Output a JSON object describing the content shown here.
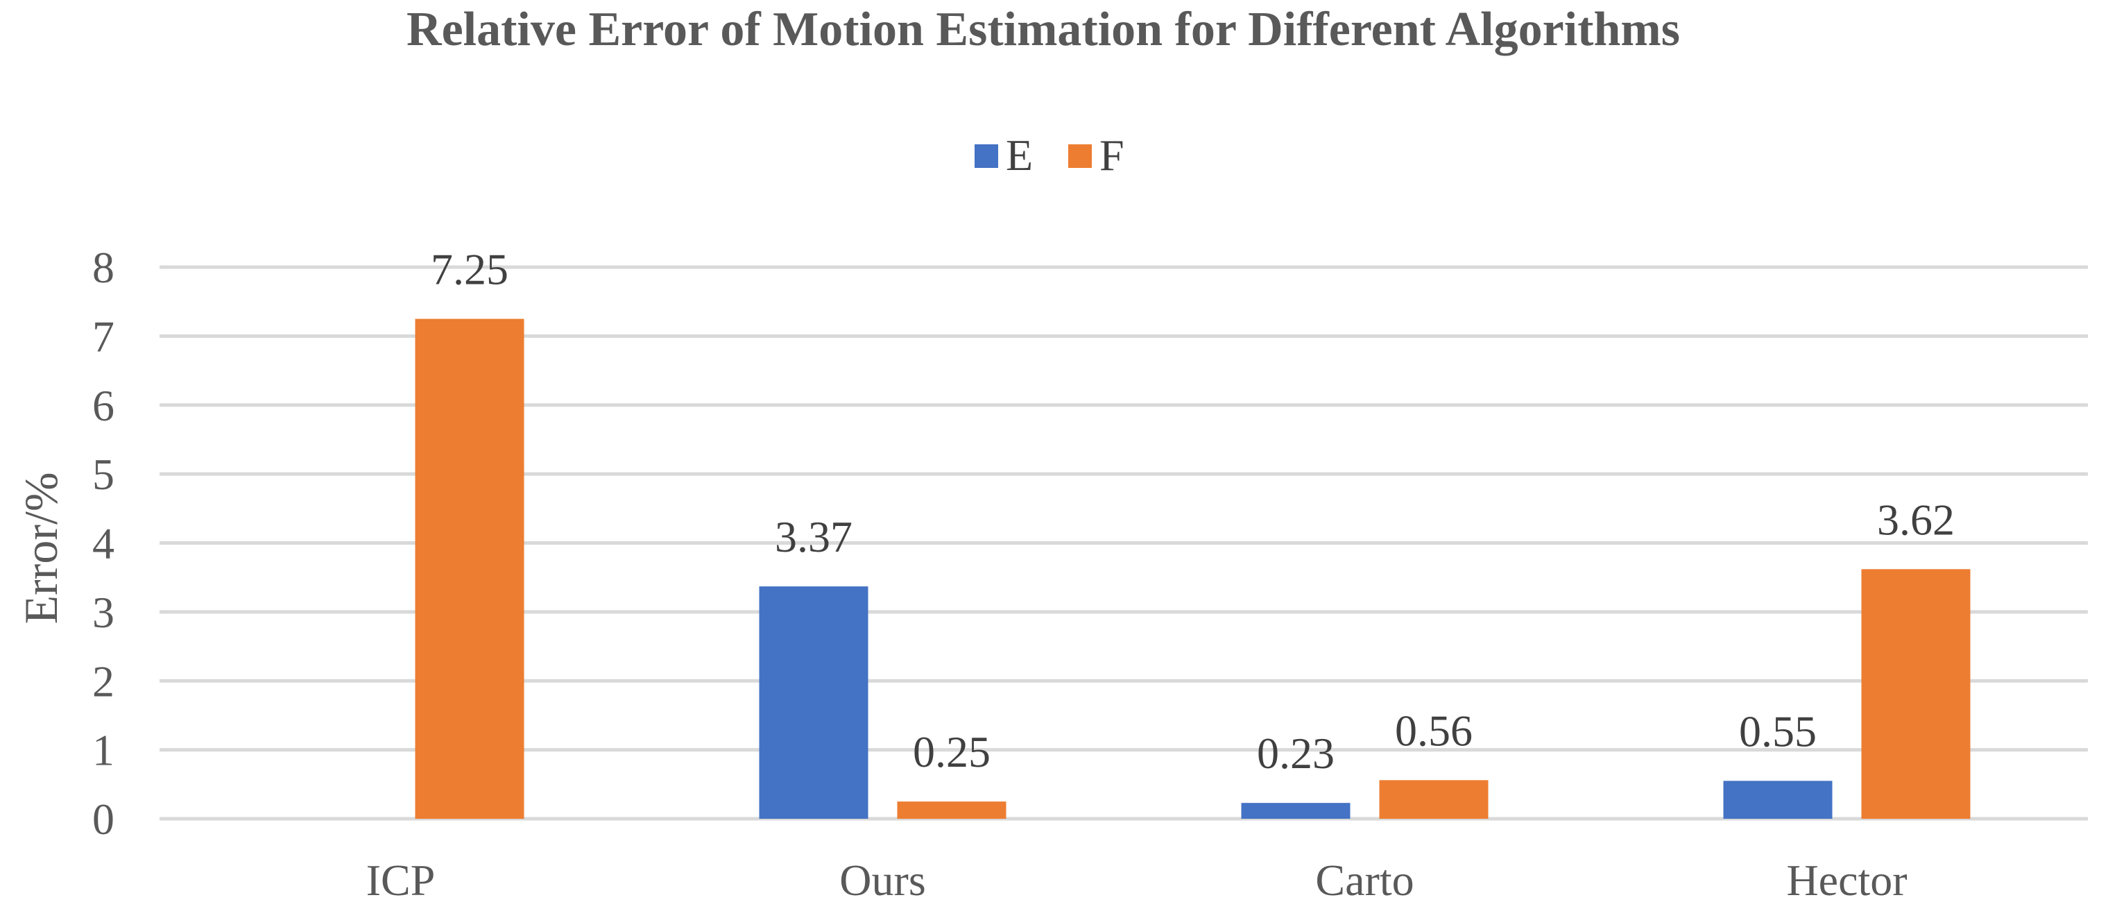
{
  "chart_data": {
    "type": "bar",
    "title": "Relative Error of Motion Estimation for Different Algorithms",
    "xlabel": "",
    "ylabel": "Error/%",
    "categories": [
      "ICP",
      "Ours",
      "Carto",
      "Hector"
    ],
    "series": [
      {
        "name": "E",
        "color": "#4472C4",
        "values": [
          null,
          3.37,
          0.23,
          0.55
        ],
        "labels": [
          "",
          "3.37",
          "0.23",
          "0.55"
        ]
      },
      {
        "name": "F",
        "color": "#ED7D31",
        "values": [
          7.25,
          0.25,
          0.56,
          3.62
        ],
        "labels": [
          "7.25",
          "0.25",
          "0.56",
          "3.62"
        ]
      }
    ],
    "ylim": [
      0,
      8
    ],
    "yticks": [
      "0",
      "1",
      "2",
      "3",
      "4",
      "5",
      "6",
      "7",
      "8"
    ],
    "grid": true,
    "legend": "top-center",
    "gridline_color": "#D9D9D9"
  }
}
